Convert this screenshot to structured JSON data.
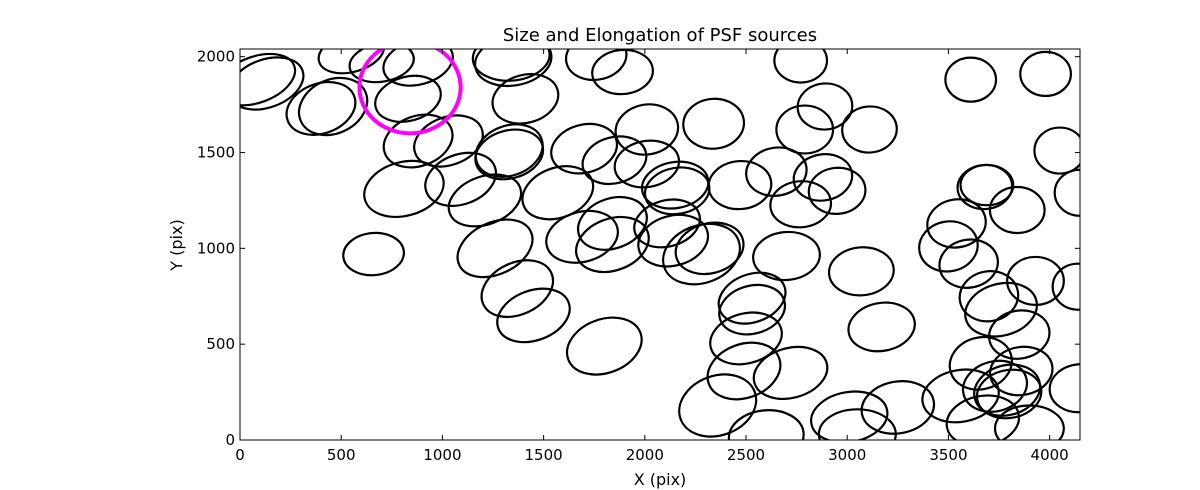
{
  "chart_data": {
    "type": "scatter",
    "title": "Size and Elongation of PSF sources",
    "xlabel": "X (pix)",
    "ylabel": "Y (pix)",
    "xlim": [
      0,
      4150
    ],
    "ylim": [
      0,
      2040
    ],
    "xticks": [
      0,
      500,
      1000,
      1500,
      2000,
      2500,
      3000,
      3500,
      4000
    ],
    "yticks": [
      0,
      500,
      1000,
      1500,
      2000
    ],
    "grid": false,
    "sources_color": "#000000",
    "highlight_color": "#ff00ff",
    "highlight": {
      "x": 840,
      "y": 1840,
      "width": 500,
      "height": 480,
      "angle": 0
    },
    "sources": [
      {
        "x": 80,
        "y": 1880,
        "width": 400,
        "height": 240,
        "angle": -20
      },
      {
        "x": 130,
        "y": 1860,
        "width": 380,
        "height": 250,
        "angle": -20
      },
      {
        "x": 460,
        "y": 1740,
        "width": 350,
        "height": 280,
        "angle": -25
      },
      {
        "x": 400,
        "y": 1730,
        "width": 350,
        "height": 260,
        "angle": -20
      },
      {
        "x": 550,
        "y": 2020,
        "width": 330,
        "height": 200,
        "angle": -15
      },
      {
        "x": 700,
        "y": 1970,
        "width": 320,
        "height": 200,
        "angle": -10
      },
      {
        "x": 880,
        "y": 1970,
        "width": 350,
        "height": 230,
        "angle": -15
      },
      {
        "x": 830,
        "y": 1780,
        "width": 330,
        "height": 230,
        "angle": -15
      },
      {
        "x": 880,
        "y": 1560,
        "width": 350,
        "height": 260,
        "angle": -20
      },
      {
        "x": 1030,
        "y": 1560,
        "width": 350,
        "height": 250,
        "angle": -20
      },
      {
        "x": 1340,
        "y": 2000,
        "width": 380,
        "height": 250,
        "angle": -5
      },
      {
        "x": 1350,
        "y": 1980,
        "width": 380,
        "height": 260,
        "angle": -10
      },
      {
        "x": 1410,
        "y": 1780,
        "width": 330,
        "height": 250,
        "angle": -15
      },
      {
        "x": 1760,
        "y": 2000,
        "width": 300,
        "height": 240,
        "angle": -10
      },
      {
        "x": 1890,
        "y": 1920,
        "width": 300,
        "height": 230,
        "angle": -5
      },
      {
        "x": 1330,
        "y": 1510,
        "width": 340,
        "height": 260,
        "angle": -20
      },
      {
        "x": 1330,
        "y": 1490,
        "width": 340,
        "height": 250,
        "angle": -15
      },
      {
        "x": 1700,
        "y": 1520,
        "width": 330,
        "height": 250,
        "angle": -15
      },
      {
        "x": 1850,
        "y": 1460,
        "width": 320,
        "height": 240,
        "angle": -15
      },
      {
        "x": 2010,
        "y": 1620,
        "width": 310,
        "height": 260,
        "angle": -10
      },
      {
        "x": 2010,
        "y": 1440,
        "width": 320,
        "height": 240,
        "angle": -10
      },
      {
        "x": 2150,
        "y": 1330,
        "width": 330,
        "height": 240,
        "angle": -10
      },
      {
        "x": 2160,
        "y": 1300,
        "width": 320,
        "height": 240,
        "angle": -10
      },
      {
        "x": 2340,
        "y": 1650,
        "width": 300,
        "height": 260,
        "angle": -5
      },
      {
        "x": 2470,
        "y": 1330,
        "width": 310,
        "height": 250,
        "angle": -5
      },
      {
        "x": 2650,
        "y": 1400,
        "width": 300,
        "height": 250,
        "angle": -10
      },
      {
        "x": 2770,
        "y": 1980,
        "width": 260,
        "height": 230,
        "angle": 0
      },
      {
        "x": 2790,
        "y": 1620,
        "width": 280,
        "height": 250,
        "angle": 0
      },
      {
        "x": 2890,
        "y": 1740,
        "width": 270,
        "height": 240,
        "angle": -5
      },
      {
        "x": 3110,
        "y": 1620,
        "width": 270,
        "height": 240,
        "angle": -5
      },
      {
        "x": 2880,
        "y": 1370,
        "width": 290,
        "height": 240,
        "angle": -10
      },
      {
        "x": 2950,
        "y": 1300,
        "width": 280,
        "height": 240,
        "angle": -5
      },
      {
        "x": 2770,
        "y": 1230,
        "width": 300,
        "height": 240,
        "angle": -5
      },
      {
        "x": 810,
        "y": 1310,
        "width": 400,
        "height": 280,
        "angle": -15
      },
      {
        "x": 1090,
        "y": 1360,
        "width": 360,
        "height": 260,
        "angle": -20
      },
      {
        "x": 1210,
        "y": 1250,
        "width": 370,
        "height": 250,
        "angle": -20
      },
      {
        "x": 1570,
        "y": 1290,
        "width": 360,
        "height": 260,
        "angle": -20
      },
      {
        "x": 1840,
        "y": 1130,
        "width": 350,
        "height": 260,
        "angle": -20
      },
      {
        "x": 1690,
        "y": 1060,
        "width": 360,
        "height": 260,
        "angle": -15
      },
      {
        "x": 1840,
        "y": 1020,
        "width": 370,
        "height": 270,
        "angle": -20
      },
      {
        "x": 2110,
        "y": 1130,
        "width": 330,
        "height": 240,
        "angle": -15
      },
      {
        "x": 2140,
        "y": 1040,
        "width": 350,
        "height": 260,
        "angle": -15
      },
      {
        "x": 2280,
        "y": 970,
        "width": 390,
        "height": 300,
        "angle": -20
      },
      {
        "x": 2320,
        "y": 1000,
        "width": 340,
        "height": 260,
        "angle": -15
      },
      {
        "x": 660,
        "y": 970,
        "width": 300,
        "height": 220,
        "angle": -5
      },
      {
        "x": 1260,
        "y": 1000,
        "width": 390,
        "height": 270,
        "angle": -25
      },
      {
        "x": 1370,
        "y": 790,
        "width": 370,
        "height": 270,
        "angle": -25
      },
      {
        "x": 1450,
        "y": 650,
        "width": 370,
        "height": 260,
        "angle": -20
      },
      {
        "x": 1800,
        "y": 490,
        "width": 380,
        "height": 280,
        "angle": -20
      },
      {
        "x": 2700,
        "y": 960,
        "width": 330,
        "height": 250,
        "angle": -5
      },
      {
        "x": 3070,
        "y": 880,
        "width": 320,
        "height": 250,
        "angle": -5
      },
      {
        "x": 3170,
        "y": 590,
        "width": 330,
        "height": 250,
        "angle": -10
      },
      {
        "x": 2530,
        "y": 740,
        "width": 340,
        "height": 250,
        "angle": -20
      },
      {
        "x": 2530,
        "y": 680,
        "width": 330,
        "height": 250,
        "angle": -15
      },
      {
        "x": 2500,
        "y": 530,
        "width": 360,
        "height": 260,
        "angle": -15
      },
      {
        "x": 2490,
        "y": 360,
        "width": 370,
        "height": 280,
        "angle": -20
      },
      {
        "x": 2720,
        "y": 350,
        "width": 370,
        "height": 260,
        "angle": -15
      },
      {
        "x": 2360,
        "y": 180,
        "width": 390,
        "height": 310,
        "angle": -20
      },
      {
        "x": 2600,
        "y": 20,
        "width": 370,
        "height": 270,
        "angle": -5
      },
      {
        "x": 3010,
        "y": 120,
        "width": 380,
        "height": 260,
        "angle": -10
      },
      {
        "x": 3050,
        "y": 30,
        "width": 380,
        "height": 260,
        "angle": 0
      },
      {
        "x": 3250,
        "y": 170,
        "width": 360,
        "height": 270,
        "angle": -10
      },
      {
        "x": 3610,
        "y": 1880,
        "width": 250,
        "height": 230,
        "angle": 0
      },
      {
        "x": 3980,
        "y": 1910,
        "width": 250,
        "height": 230,
        "angle": 0
      },
      {
        "x": 4050,
        "y": 1510,
        "width": 250,
        "height": 240,
        "angle": 0
      },
      {
        "x": 4150,
        "y": 1290,
        "width": 250,
        "height": 240,
        "angle": 0
      },
      {
        "x": 3540,
        "y": 1130,
        "width": 290,
        "height": 250,
        "angle": -10
      },
      {
        "x": 3500,
        "y": 1010,
        "width": 290,
        "height": 260,
        "angle": -10
      },
      {
        "x": 3680,
        "y": 1320,
        "width": 270,
        "height": 230,
        "angle": -5
      },
      {
        "x": 3690,
        "y": 1330,
        "width": 260,
        "height": 210,
        "angle": 0
      },
      {
        "x": 3840,
        "y": 1200,
        "width": 270,
        "height": 240,
        "angle": 0
      },
      {
        "x": 3600,
        "y": 920,
        "width": 290,
        "height": 250,
        "angle": -10
      },
      {
        "x": 3930,
        "y": 830,
        "width": 280,
        "height": 250,
        "angle": 0
      },
      {
        "x": 4140,
        "y": 800,
        "width": 250,
        "height": 240,
        "angle": 0
      },
      {
        "x": 3700,
        "y": 750,
        "width": 290,
        "height": 260,
        "angle": -10
      },
      {
        "x": 3760,
        "y": 680,
        "width": 360,
        "height": 270,
        "angle": -15
      },
      {
        "x": 3850,
        "y": 550,
        "width": 300,
        "height": 250,
        "angle": -10
      },
      {
        "x": 3660,
        "y": 400,
        "width": 310,
        "height": 270,
        "angle": -15
      },
      {
        "x": 3860,
        "y": 360,
        "width": 310,
        "height": 250,
        "angle": -10
      },
      {
        "x": 3730,
        "y": 280,
        "width": 320,
        "height": 260,
        "angle": -15
      },
      {
        "x": 3790,
        "y": 260,
        "width": 330,
        "height": 260,
        "angle": -15
      },
      {
        "x": 3800,
        "y": 240,
        "width": 320,
        "height": 250,
        "angle": -10
      },
      {
        "x": 3560,
        "y": 230,
        "width": 380,
        "height": 270,
        "angle": -10
      },
      {
        "x": 3670,
        "y": 100,
        "width": 360,
        "height": 260,
        "angle": -10
      },
      {
        "x": 3900,
        "y": 60,
        "width": 340,
        "height": 240,
        "angle": 0
      },
      {
        "x": 4150,
        "y": 270,
        "width": 300,
        "height": 250,
        "angle": -5
      }
    ]
  }
}
